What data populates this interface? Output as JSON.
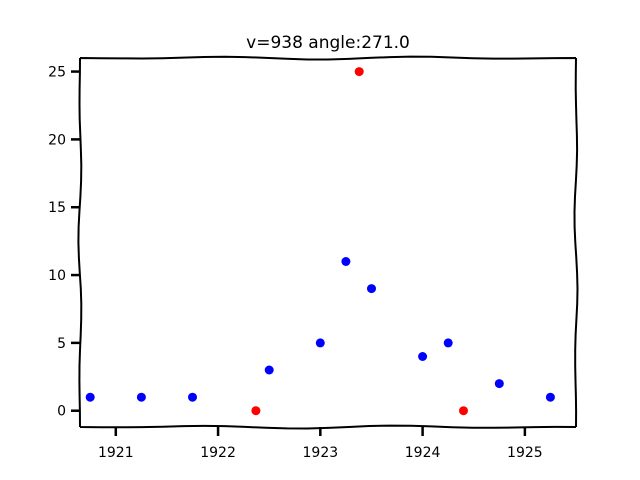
{
  "chart_data": {
    "type": "scatter",
    "title": "v=938 angle:271.0",
    "xlabel": "",
    "ylabel": "",
    "xlim": [
      1920.65,
      1925.5
    ],
    "ylim": [
      -1.2,
      26.0
    ],
    "x_ticks": [
      1921,
      1922,
      1923,
      1924,
      1925
    ],
    "x_tick_labels": [
      "1921",
      "1922",
      "1923",
      "1924",
      "1925"
    ],
    "y_ticks": [
      0,
      5,
      10,
      15,
      20,
      25
    ],
    "y_tick_labels": [
      "0",
      "5",
      "10",
      "15",
      "20",
      "25"
    ],
    "grid": false,
    "legend": "none",
    "colors": {
      "normal": "#0000ff",
      "highlight": "#ff0000"
    },
    "points": [
      {
        "x": 1920.75,
        "y": 1,
        "color": "#0000ff"
      },
      {
        "x": 1921.25,
        "y": 1,
        "color": "#0000ff"
      },
      {
        "x": 1921.75,
        "y": 1,
        "color": "#0000ff"
      },
      {
        "x": 1922.37,
        "y": 0,
        "color": "#ff0000"
      },
      {
        "x": 1922.5,
        "y": 3,
        "color": "#0000ff"
      },
      {
        "x": 1923.0,
        "y": 5,
        "color": "#0000ff"
      },
      {
        "x": 1923.25,
        "y": 11,
        "color": "#0000ff"
      },
      {
        "x": 1923.38,
        "y": 25,
        "color": "#ff0000"
      },
      {
        "x": 1923.5,
        "y": 9,
        "color": "#0000ff"
      },
      {
        "x": 1924.0,
        "y": 4,
        "color": "#0000ff"
      },
      {
        "x": 1924.25,
        "y": 5,
        "color": "#0000ff"
      },
      {
        "x": 1924.4,
        "y": 0,
        "color": "#ff0000"
      },
      {
        "x": 1924.75,
        "y": 2,
        "color": "#0000ff"
      },
      {
        "x": 1925.25,
        "y": 1,
        "color": "#0000ff"
      }
    ]
  }
}
